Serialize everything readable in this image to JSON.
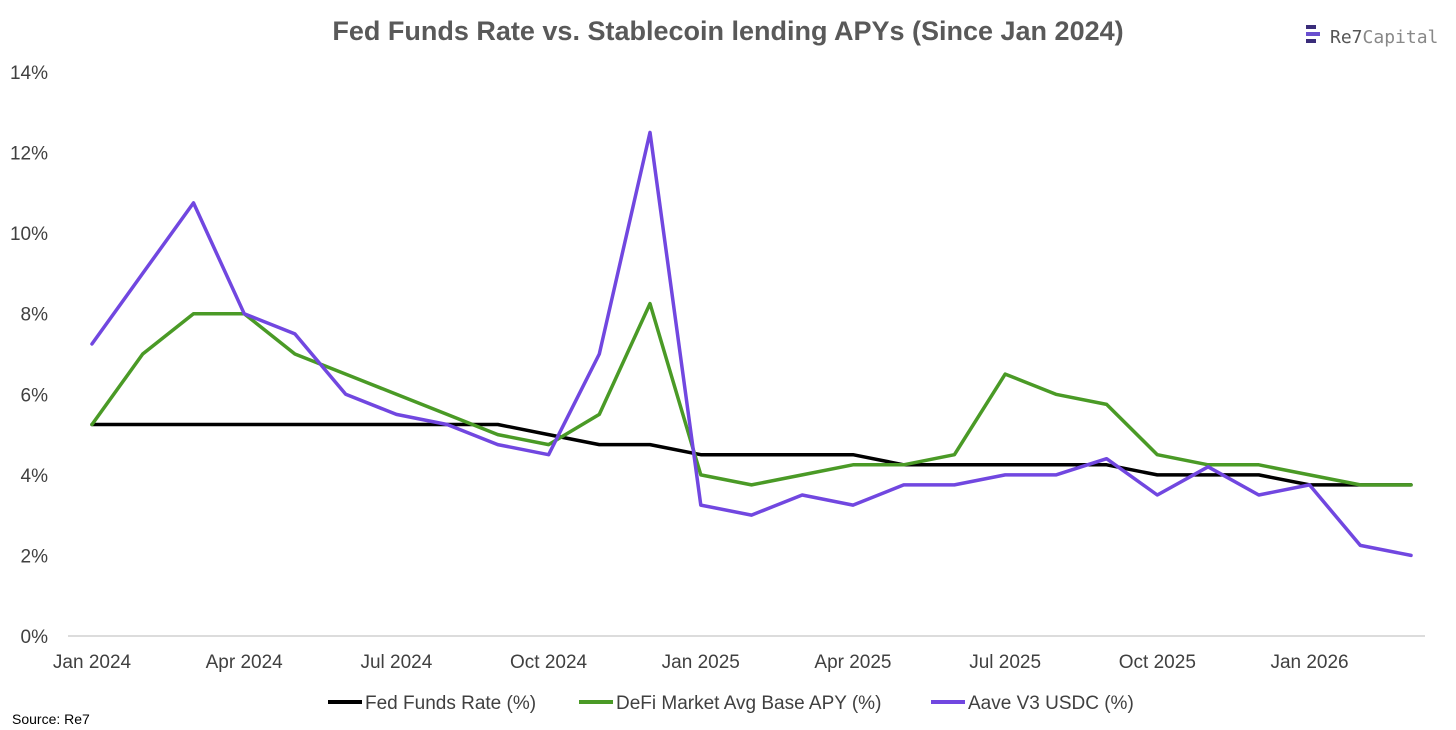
{
  "chart_data": {
    "type": "line",
    "title": "Fed Funds Rate vs. Stablecoin lending APYs (Since Jan 2024)",
    "xlabel": "",
    "ylabel": "",
    "ylim": [
      0,
      14
    ],
    "y_ticks": [
      "0%",
      "2%",
      "4%",
      "6%",
      "8%",
      "10%",
      "12%",
      "14%"
    ],
    "x_tick_labels": [
      {
        "index": 0,
        "label": "Jan 2024"
      },
      {
        "index": 3,
        "label": "Apr 2024"
      },
      {
        "index": 6,
        "label": "Jul 2024"
      },
      {
        "index": 9,
        "label": "Oct 2024"
      },
      {
        "index": 12,
        "label": "Jan 2025"
      },
      {
        "index": 15,
        "label": "Apr 2025"
      },
      {
        "index": 18,
        "label": "Jul 2025"
      },
      {
        "index": 21,
        "label": "Oct 2025"
      },
      {
        "index": 24,
        "label": "Jan 2026"
      }
    ],
    "x": [
      "Jan 2024",
      "Feb 2024",
      "Mar 2024",
      "Apr 2024",
      "May 2024",
      "Jun 2024",
      "Jul 2024",
      "Aug 2024",
      "Sep 2024",
      "Oct 2024",
      "Nov 2024",
      "Dec 2024",
      "Jan 2025",
      "Feb 2025",
      "Mar 2025",
      "Apr 2025",
      "May 2025",
      "Jun 2025",
      "Jul 2025",
      "Aug 2025",
      "Sep 2025",
      "Oct 2025",
      "Nov 2025",
      "Dec 2025",
      "Jan 2026",
      "Feb 2026",
      "Mar 2026"
    ],
    "grid": false,
    "legend_position": "bottom",
    "series": [
      {
        "name": "Fed Funds Rate (%)",
        "color": "#000000",
        "values": [
          5.25,
          5.25,
          5.25,
          5.25,
          5.25,
          5.25,
          5.25,
          5.25,
          5.25,
          5.0,
          4.75,
          4.75,
          4.5,
          4.5,
          4.5,
          4.5,
          4.25,
          4.25,
          4.25,
          4.25,
          4.25,
          4.0,
          4.0,
          4.0,
          3.75,
          3.75,
          3.75
        ]
      },
      {
        "name": "DeFi Market Avg Base APY (%)",
        "color": "#4a9a26",
        "values": [
          5.25,
          7.0,
          8.0,
          8.0,
          7.0,
          6.5,
          6.0,
          5.5,
          5.0,
          4.75,
          5.5,
          8.25,
          4.0,
          3.75,
          4.0,
          4.25,
          4.25,
          4.5,
          6.5,
          6.0,
          5.75,
          4.5,
          4.25,
          4.25,
          4.0,
          3.75,
          3.75
        ]
      },
      {
        "name": "Aave V3 USDC (%)",
        "color": "#7147e0",
        "values": [
          7.25,
          9.0,
          10.75,
          8.0,
          7.5,
          6.0,
          5.5,
          5.25,
          4.75,
          4.5,
          7.0,
          12.5,
          3.25,
          3.0,
          3.5,
          3.25,
          3.75,
          3.75,
          4.0,
          4.0,
          4.4,
          3.5,
          4.2,
          3.5,
          3.75,
          2.25,
          2.0
        ]
      }
    ]
  },
  "source": "Source: Re7",
  "logo": {
    "text_re7": "Re7",
    "text_capital": "Capital",
    "color_re7": "#555555",
    "color_capital": "#888888",
    "mark_color": "#3a2c7a"
  }
}
